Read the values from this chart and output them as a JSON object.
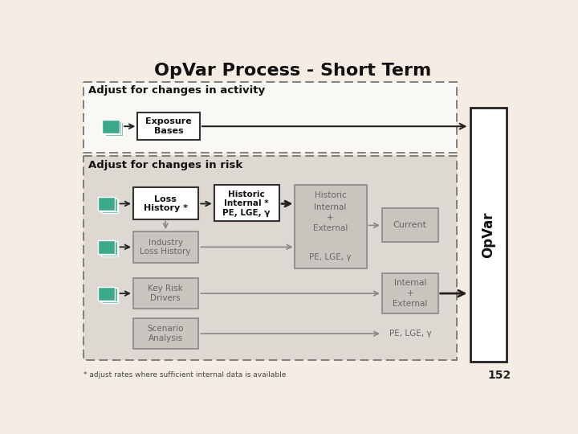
{
  "title": "OpVar Process - Short Term",
  "slide_bg": "#f5ede4",
  "activity_bg": "#faf8f4",
  "risk_bg": "#ddd9d2",
  "white_box_fc": "#ffffff",
  "white_box_ec": "#333333",
  "gray_box_fc": "#c8c5be",
  "gray_box_ec": "#888888",
  "opvar_box_fc": "#ffffff",
  "opvar_box_ec": "#222222",
  "teal_color": "#3aaa88",
  "teal_dark": "#228866",
  "dark_gray_text": "#666666",
  "black_text": "#111111",
  "arrow_dark": "#222222",
  "arrow_gray": "#888888",
  "footnote": "* adjust rates where sufficient internal data is available",
  "page_number": "152",
  "label_activity": "Adjust for changes in activity",
  "label_risk": "Adjust for changes in risk",
  "label_exposure": "Exposure\nBases",
  "label_loss_history": "Loss\nHistory *",
  "label_historic_internal": "Historic\nInternal *\nPE, LGE, γ",
  "label_industry": "Industry\nLoss History",
  "label_key_risk": "Key Risk\nDrivers",
  "label_scenario": "Scenario\nAnalysis",
  "label_current": "Current",
  "label_internal_external": "Internal\n+\nExternal",
  "label_pe_lge_bottom": "PE, LGE, γ",
  "label_opvar": "OpVar",
  "label_historic": "Historic",
  "label_int_ext_combo": "Internal\n+\nExternal",
  "label_pe_lge_combo": "PE, LGE, γ"
}
